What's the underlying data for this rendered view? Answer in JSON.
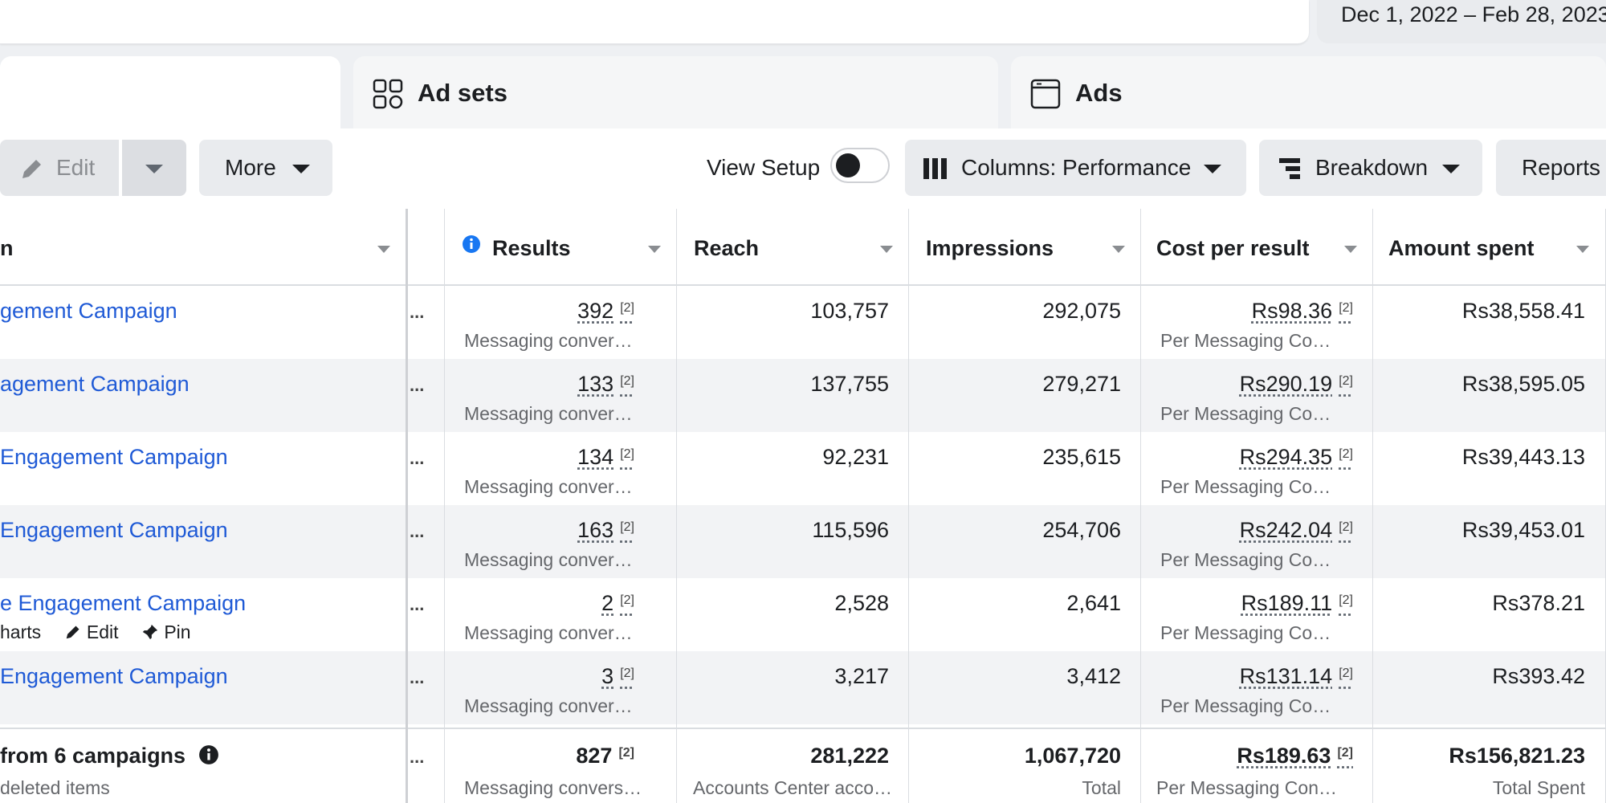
{
  "date_range": "Dec 1, 2022 – Feb 28, 2023",
  "tabs": {
    "ad_sets": "Ad sets",
    "ads": "Ads"
  },
  "toolbar": {
    "edit_label": "Edit",
    "more_label": "More",
    "view_setup_label": "View Setup",
    "columns_label": "Columns: Performance",
    "breakdown_label": "Breakdown",
    "reports_label": "Reports"
  },
  "columns": {
    "name": "n",
    "results": "Results",
    "reach": "Reach",
    "impressions": "Impressions",
    "cost_per_result": "Cost per result",
    "amount_spent": "Amount spent"
  },
  "rows": [
    {
      "name": "gement Campaign",
      "results": "392",
      "results_ref": "[2]",
      "results_sub": "Messaging conver…",
      "reach": "103,757",
      "impressions": "292,075",
      "cpr": "Rs98.36",
      "cpr_ref": "[2]",
      "cpr_sub": "Per Messaging Co…",
      "spent": "Rs38,558.41"
    },
    {
      "name": "agement Campaign",
      "results": "133",
      "results_ref": "[2]",
      "results_sub": "Messaging conver…",
      "reach": "137,755",
      "impressions": "279,271",
      "cpr": "Rs290.19",
      "cpr_ref": "[2]",
      "cpr_sub": "Per Messaging Co…",
      "spent": "Rs38,595.05"
    },
    {
      "name": "Engagement Campaign",
      "results": "134",
      "results_ref": "[2]",
      "results_sub": "Messaging conver…",
      "reach": "92,231",
      "impressions": "235,615",
      "cpr": "Rs294.35",
      "cpr_ref": "[2]",
      "cpr_sub": "Per Messaging Co…",
      "spent": "Rs39,443.13"
    },
    {
      "name": "Engagement Campaign",
      "results": "163",
      "results_ref": "[2]",
      "results_sub": "Messaging conver…",
      "reach": "115,596",
      "impressions": "254,706",
      "cpr": "Rs242.04",
      "cpr_ref": "[2]",
      "cpr_sub": "Per Messaging Co…",
      "spent": "Rs39,453.01"
    },
    {
      "name": "e Engagement Campaign",
      "results": "2",
      "results_ref": "[2]",
      "results_sub": "Messaging conver…",
      "reach": "2,528",
      "impressions": "2,641",
      "cpr": "Rs189.11",
      "cpr_ref": "[2]",
      "cpr_sub": "Per Messaging Co…",
      "spent": "Rs378.21"
    },
    {
      "name": "Engagement Campaign",
      "results": "3",
      "results_ref": "[2]",
      "results_sub": "Messaging conver…",
      "reach": "3,217",
      "impressions": "3,412",
      "cpr": "Rs131.14",
      "cpr_ref": "[2]",
      "cpr_sub": "Per Messaging Co…",
      "spent": "Rs393.42"
    }
  ],
  "row_actions": {
    "charts": "harts",
    "edit": "Edit",
    "pin": "Pin"
  },
  "ellipsis": "...",
  "totals": {
    "label": "from 6 campaigns",
    "sub": "deleted items",
    "results": "827",
    "results_ref": "[2]",
    "results_sub": "Messaging convers…",
    "reach": "281,222",
    "reach_sub": "Accounts Center acco…",
    "impressions": "1,067,720",
    "impressions_sub": "Total",
    "cpr": "Rs189.63",
    "cpr_ref": "[2]",
    "cpr_sub": "Per Messaging Con…",
    "spent": "Rs156,821.23",
    "spent_sub": "Total Spent"
  },
  "colors": {
    "link": "#1f5ad6",
    "info": "#1877f2"
  }
}
